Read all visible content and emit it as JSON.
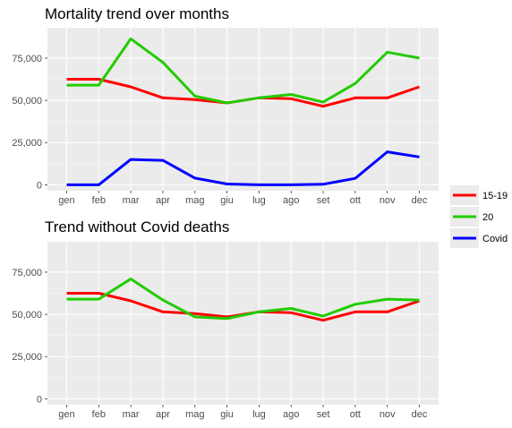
{
  "chart_data": [
    {
      "type": "line",
      "title": "Mortality trend over months",
      "xlabel": "",
      "ylabel": "",
      "categories": [
        "gen",
        "feb",
        "mar",
        "apr",
        "mag",
        "giu",
        "lug",
        "ago",
        "set",
        "ott",
        "nov",
        "dec"
      ],
      "ylim": [
        -3500,
        93000
      ],
      "yticks": [
        0,
        25000,
        50000,
        75000
      ],
      "ytick_labels": [
        "0",
        "25,000",
        "50,000",
        "75,000"
      ],
      "grid": true,
      "series": [
        {
          "name": "15-19",
          "color": "#ff0000",
          "values": [
            62500,
            62500,
            58000,
            51500,
            50500,
            48500,
            51500,
            51000,
            46500,
            51500,
            51500,
            58000
          ]
        },
        {
          "name": "20",
          "color": "#22cc00",
          "values": [
            59000,
            59000,
            86500,
            72500,
            52500,
            48500,
            51500,
            53500,
            49000,
            60000,
            78500,
            75000
          ]
        },
        {
          "name": "Covid",
          "color": "#0000ff",
          "values": [
            0,
            0,
            15000,
            14500,
            4000,
            500,
            0,
            0,
            300,
            3800,
            19500,
            16500
          ]
        }
      ]
    },
    {
      "type": "line",
      "title": "Trend without Covid deaths",
      "xlabel": "",
      "ylabel": "",
      "categories": [
        "gen",
        "feb",
        "mar",
        "apr",
        "mag",
        "giu",
        "lug",
        "ago",
        "set",
        "ott",
        "nov",
        "dec"
      ],
      "ylim": [
        -3500,
        93000
      ],
      "yticks": [
        0,
        25000,
        50000,
        75000
      ],
      "ytick_labels": [
        "0",
        "25,000",
        "50,000",
        "75,000"
      ],
      "grid": true,
      "series": [
        {
          "name": "15-19",
          "color": "#ff0000",
          "values": [
            62500,
            62500,
            58000,
            51500,
            50500,
            48500,
            51500,
            51000,
            46500,
            51500,
            51500,
            58000
          ]
        },
        {
          "name": "20",
          "color": "#22cc00",
          "values": [
            59000,
            59000,
            71000,
            58500,
            48500,
            47500,
            51500,
            53500,
            49000,
            56000,
            59000,
            58500
          ]
        }
      ]
    }
  ],
  "legend": {
    "placement": "right",
    "items": [
      {
        "label": "15-19",
        "color": "#ff0000"
      },
      {
        "label": "20",
        "color": "#22cc00"
      },
      {
        "label": "Covid",
        "color": "#0000ff"
      }
    ]
  }
}
